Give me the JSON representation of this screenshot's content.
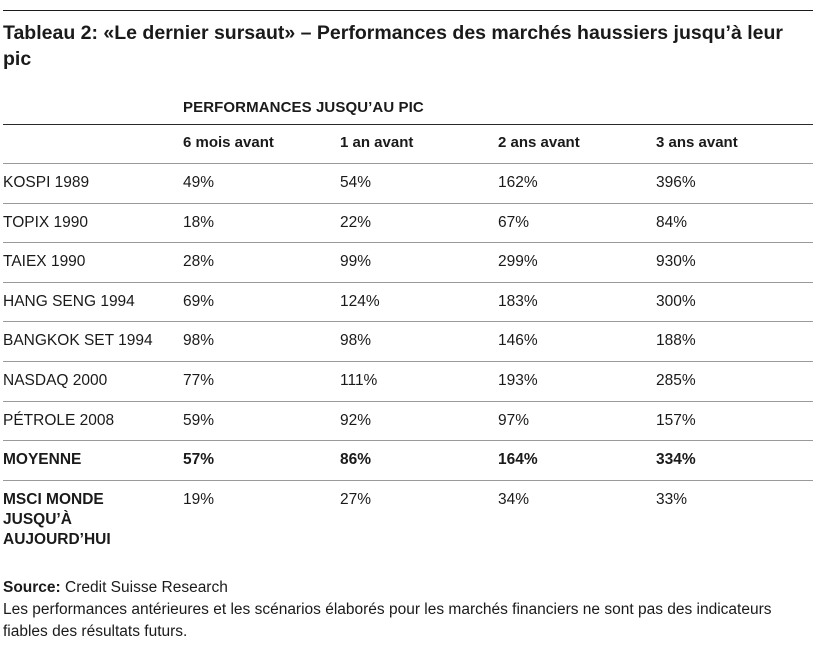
{
  "title": "Tableau 2: «Le dernier sursaut» – Performances des marchés haussiers jusqu’à leur pic",
  "group_header": "PERFORMANCES JUSQU’AU PIC",
  "columns": [
    "",
    "6 mois avant",
    "1 an avant",
    "2 ans avant",
    "3 ans avant"
  ],
  "rows": [
    {
      "label": "KOSPI 1989",
      "values": [
        "49%",
        "54%",
        "162%",
        "396%"
      ]
    },
    {
      "label": "TOPIX 1990",
      "values": [
        "18%",
        "22%",
        "67%",
        "84%"
      ]
    },
    {
      "label": "TAIEX 1990",
      "values": [
        "28%",
        "99%",
        "299%",
        "930%"
      ]
    },
    {
      "label": "HANG SENG 1994",
      "values": [
        "69%",
        "124%",
        "183%",
        "300%"
      ]
    },
    {
      "label": "BANGKOK SET 1994",
      "values": [
        "98%",
        "98%",
        "146%",
        "188%"
      ]
    },
    {
      "label": "NASDAQ 2000",
      "values": [
        "77%",
        "111%",
        "193%",
        "285%"
      ]
    },
    {
      "label": "PÉTROLE 2008",
      "values": [
        "59%",
        "92%",
        "97%",
        "157%"
      ]
    },
    {
      "label": "MOYENNE",
      "values": [
        "57%",
        "86%",
        "164%",
        "334%"
      ]
    },
    {
      "label": "MSCI MONDE JUSQU’À AUJOURD’HUI",
      "values": [
        "19%",
        "27%",
        "34%",
        "33%"
      ]
    }
  ],
  "source": {
    "label": "Source:",
    "text": " Credit Suisse Research",
    "disclaimer": "Les performances antérieures et les scénarios élaborés pour les marchés financiers ne sont pas des indicateurs fiables des résultats futurs."
  }
}
